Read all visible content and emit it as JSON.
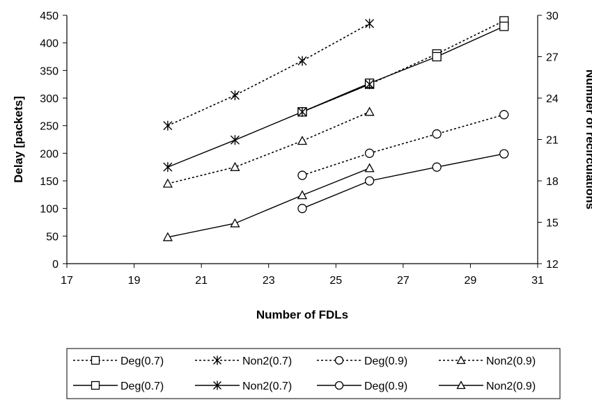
{
  "chart_data": {
    "type": "line",
    "title": "",
    "xlabel": "Number of FDLs",
    "ylabel_left": "Delay [packets]",
    "ylabel_right": "Number of recirculations",
    "xlim": [
      17,
      31
    ],
    "ylim_left": [
      0,
      450
    ],
    "ylim_right": [
      12,
      30
    ],
    "x_ticks": [
      "17",
      "19",
      "21",
      "23",
      "25",
      "27",
      "29",
      "31"
    ],
    "y_ticks_left": [
      "0",
      "50",
      "100",
      "150",
      "200",
      "250",
      "300",
      "350",
      "400",
      "450"
    ],
    "y_ticks_right": [
      "12",
      "15",
      "18",
      "21",
      "24",
      "27",
      "30"
    ],
    "grid": false,
    "legend_position": "bottom",
    "series": [
      {
        "name": "Deg(0.7)",
        "axis": "right",
        "style": "dotted",
        "marker": "square",
        "x": [
          24,
          26,
          28,
          30
        ],
        "y": [
          23,
          25,
          27.2,
          29.6
        ]
      },
      {
        "name": "Non2(0.7)",
        "axis": "right",
        "style": "dotted",
        "marker": "star",
        "x": [
          20,
          22,
          24,
          26
        ],
        "y": [
          22,
          24.2,
          26.7,
          29.4
        ]
      },
      {
        "name": "Deg(0.9)",
        "axis": "right",
        "style": "dotted",
        "marker": "circle",
        "x": [
          24,
          26,
          28,
          30
        ],
        "y": [
          18.4,
          20,
          21.4,
          22.8
        ]
      },
      {
        "name": "Non2(0.9)",
        "axis": "right",
        "style": "dotted",
        "marker": "triangle",
        "x": [
          20,
          22,
          24,
          26
        ],
        "y": [
          17.8,
          19,
          20.9,
          23
        ]
      },
      {
        "name": "Deg(0.7)",
        "axis": "left",
        "style": "solid",
        "marker": "square",
        "x": [
          24,
          26,
          28,
          30
        ],
        "y": [
          275,
          327,
          375,
          430
        ]
      },
      {
        "name": "Non2(0.7)",
        "axis": "left",
        "style": "solid",
        "marker": "star",
        "x": [
          20,
          22,
          24,
          26
        ],
        "y": [
          175,
          224,
          275,
          325
        ]
      },
      {
        "name": "Deg(0.9)",
        "axis": "left",
        "style": "solid",
        "marker": "circle",
        "x": [
          24,
          26,
          28,
          30
        ],
        "y": [
          100,
          150,
          175,
          199
        ]
      },
      {
        "name": "Non2(0.9)",
        "axis": "left",
        "style": "solid",
        "marker": "triangle",
        "x": [
          20,
          22,
          24,
          26
        ],
        "y": [
          48,
          73,
          124,
          173
        ]
      }
    ]
  }
}
